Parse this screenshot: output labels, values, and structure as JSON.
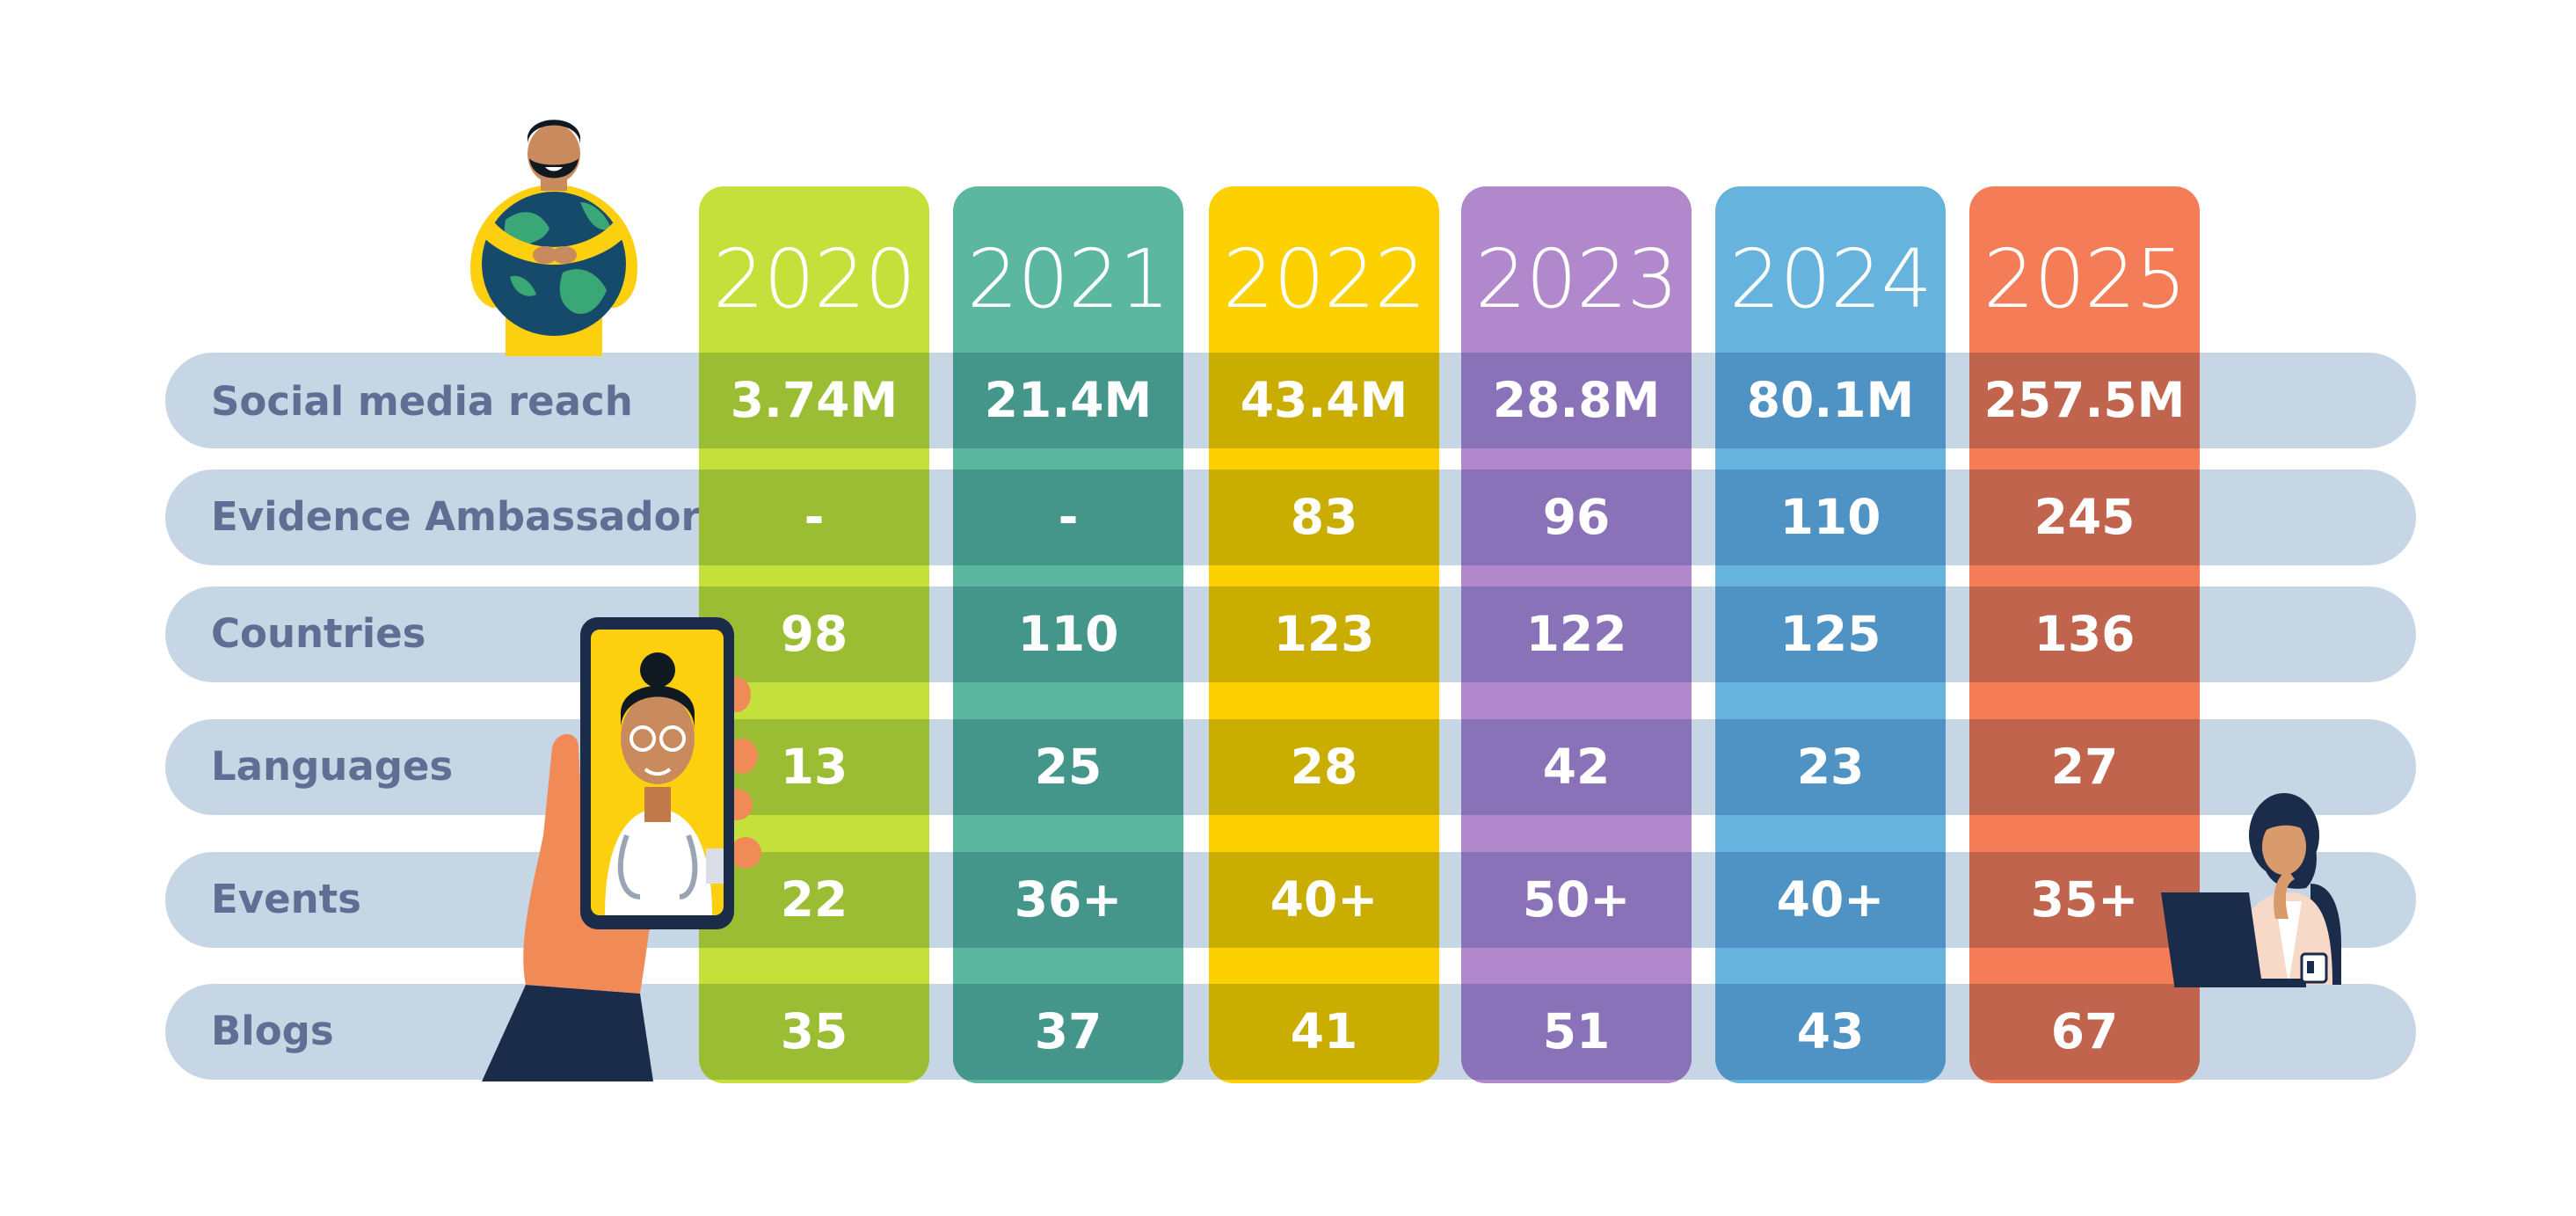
{
  "rows": [
    "Social media reach",
    "Evidence Ambassadors",
    "Countries",
    "Languages",
    "Events",
    "Blogs"
  ],
  "years": [
    {
      "year": "2020",
      "color": "#c5e03a",
      "dark": "#9bbd34",
      "values": [
        "3.74M",
        "-",
        "98",
        "13",
        "22",
        "35"
      ]
    },
    {
      "year": "2021",
      "color": "#5bb7a0",
      "dark": "#45968a",
      "values": [
        "21.4M",
        "-",
        "110",
        "25",
        "36+",
        "37"
      ]
    },
    {
      "year": "2022",
      "color": "#fdd000",
      "dark": "#c9ad00",
      "values": [
        "43.4M",
        "83",
        "123",
        "28",
        "40+",
        "41"
      ]
    },
    {
      "year": "2023",
      "color": "#b088cb",
      "dark": "#8a72b8",
      "values": [
        "28.8M",
        "96",
        "122",
        "42",
        "50+",
        "51"
      ]
    },
    {
      "year": "2024",
      "color": "#66b3dd",
      "dark": "#4f92c4",
      "values": [
        "80.1M",
        "110",
        "125",
        "23",
        "40+",
        "43"
      ]
    },
    {
      "year": "2025",
      "color": "#f47d58",
      "dark": "#c0644e",
      "values": [
        "257.5M",
        "245",
        "136",
        "27",
        "35+",
        "67"
      ]
    }
  ],
  "illustrations": [
    "globe-hug-man-illustration",
    "phone-doctor-illustration",
    "laptop-woman-illustration"
  ]
}
